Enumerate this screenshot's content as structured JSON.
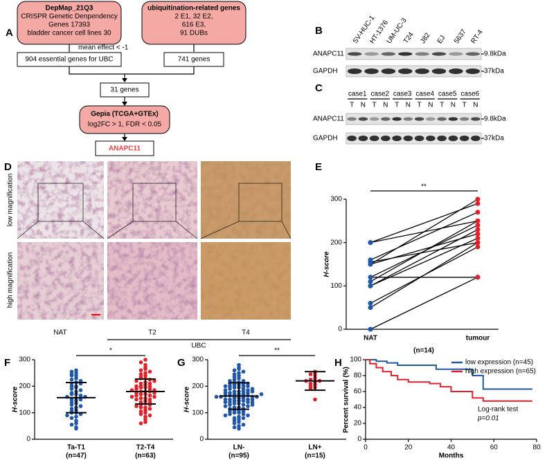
{
  "panel_labels": [
    "A",
    "B",
    "C",
    "D",
    "E",
    "F",
    "G",
    "H"
  ],
  "flowchart": {
    "nodes": [
      {
        "title": "DepMap_21Q3",
        "lines": [
          "CRISPR Genetic Denpendency",
          "Genes 17393",
          "bladder cancer cell lines 30"
        ]
      },
      {
        "title": "ubiquitination-related genes",
        "lines": [
          "2 E1, 32 E2,",
          "616 E3,",
          "91 DUBs"
        ]
      },
      {
        "title": "904 essential genes for UBC"
      },
      {
        "title": "741 genes"
      },
      {
        "title": "31 genes"
      },
      {
        "title": "Gepia (TCGA+GTEx)",
        "lines": [
          "log2FC > 1, FDR < 0.05"
        ]
      },
      {
        "title": "ANAPC11"
      }
    ],
    "edge_label": "mean effect < -1"
  },
  "blot_b": {
    "lanes": [
      "SV-HUC-1",
      "HT-1376",
      "UM-UC-3",
      "T24",
      "J82",
      "EJ",
      "5637",
      "RT-4"
    ],
    "rows": [
      "ANAPC11",
      "GAPDH"
    ],
    "sizes": [
      "9.8kDa",
      "37kDa"
    ]
  },
  "blot_c": {
    "cases": [
      "case1",
      "case2",
      "case3",
      "case4",
      "case5",
      "case6"
    ],
    "tn": [
      "T",
      "N"
    ],
    "rows": [
      "ANAPC11",
      "GAPDH"
    ],
    "sizes": [
      "9.8kDa",
      "37kDa"
    ]
  },
  "histology": {
    "row_labels": [
      "low magnification",
      "high magnification"
    ],
    "columns": [
      "NAT",
      "T2",
      "T4"
    ],
    "group": "UBC"
  },
  "chart_data": [
    {
      "type": "paired",
      "categories": [
        "NAT",
        "tumour"
      ],
      "point_colors": [
        "#1f56a8",
        "#e0202a"
      ],
      "ylabel": "H-score",
      "xlabel": "(n=14)",
      "significance": "**",
      "ylim": [
        0,
        300
      ],
      "yticks": [
        0,
        100,
        200,
        300
      ],
      "series": [
        {
          "values": [
            0,
            120
          ]
        },
        {
          "values": [
            50,
            200
          ]
        },
        {
          "values": [
            60,
            190
          ]
        },
        {
          "values": [
            100,
            210
          ]
        },
        {
          "values": [
            100,
            230
          ]
        },
        {
          "values": [
            110,
            250
          ]
        },
        {
          "values": [
            120,
            120
          ]
        },
        {
          "values": [
            120,
            240
          ]
        },
        {
          "values": [
            150,
            220
          ]
        },
        {
          "values": [
            150,
            300
          ]
        },
        {
          "values": [
            155,
            200
          ]
        },
        {
          "values": [
            160,
            270
          ]
        },
        {
          "values": [
            200,
            250
          ]
        },
        {
          "values": [
            200,
            290
          ]
        }
      ]
    },
    {
      "type": "dot",
      "ylabel": "H-score",
      "significance": "*",
      "ylim": [
        0,
        300
      ],
      "yticks": [
        0,
        100,
        200,
        300
      ],
      "categories": [
        "Ta-T1",
        "T2-T4"
      ],
      "category_counts": [
        "(n=47)",
        "(n=63)"
      ],
      "groups": [
        {
          "color": "#1f56a8",
          "mean": 157,
          "sd": 57,
          "values": [
            260,
            255,
            250,
            245,
            240,
            240,
            230,
            225,
            220,
            215,
            210,
            210,
            200,
            200,
            195,
            190,
            185,
            180,
            175,
            170,
            170,
            165,
            160,
            160,
            155,
            150,
            150,
            145,
            140,
            135,
            130,
            125,
            120,
            115,
            110,
            105,
            100,
            100,
            95,
            90,
            85,
            80,
            70,
            60,
            55,
            45,
            40
          ]
        },
        {
          "color": "#e0202a",
          "mean": 180,
          "sd": 47,
          "values": [
            300,
            290,
            280,
            270,
            265,
            260,
            255,
            250,
            245,
            240,
            235,
            230,
            230,
            225,
            220,
            220,
            215,
            210,
            210,
            205,
            200,
            200,
            200,
            195,
            195,
            190,
            190,
            185,
            185,
            180,
            180,
            180,
            175,
            175,
            170,
            170,
            165,
            165,
            160,
            160,
            155,
            155,
            150,
            150,
            145,
            140,
            140,
            135,
            130,
            130,
            125,
            120,
            120,
            115,
            110,
            105,
            100,
            95,
            90,
            85,
            75,
            65,
            60
          ]
        }
      ]
    },
    {
      "type": "dot",
      "ylabel": "H-score",
      "significance": "**",
      "ylim": [
        0,
        300
      ],
      "yticks": [
        0,
        100,
        200,
        300
      ],
      "categories": [
        "LN-",
        "LN+"
      ],
      "category_counts": [
        "(n=95)",
        "(n=15)"
      ],
      "groups": [
        {
          "color": "#1f56a8",
          "mean": 163,
          "sd": 50,
          "values": [
            280,
            270,
            265,
            260,
            255,
            250,
            245,
            240,
            235,
            230,
            225,
            220,
            220,
            215,
            215,
            210,
            210,
            205,
            205,
            200,
            200,
            200,
            195,
            195,
            190,
            190,
            185,
            185,
            180,
            180,
            180,
            175,
            175,
            175,
            170,
            170,
            170,
            165,
            165,
            165,
            160,
            160,
            160,
            155,
            155,
            155,
            150,
            150,
            150,
            145,
            145,
            145,
            140,
            140,
            140,
            135,
            135,
            130,
            130,
            125,
            125,
            120,
            120,
            115,
            115,
            110,
            110,
            105,
            105,
            100,
            100,
            95,
            95,
            90,
            90,
            85,
            80,
            80,
            75,
            70,
            65,
            60,
            55,
            50,
            45,
            40,
            180,
            190,
            160,
            140,
            170,
            150,
            130,
            200,
            210
          ]
        },
        {
          "color": "#e0202a",
          "mean": 220,
          "sd": 35,
          "values": [
            255,
            250,
            245,
            240,
            230,
            225,
            220,
            220,
            215,
            210,
            205,
            200,
            195,
            190,
            150
          ]
        }
      ]
    },
    {
      "type": "km",
      "xlabel": "Months",
      "ylabel": "Percent survival (%)",
      "xlim": [
        0,
        80
      ],
      "xticks": [
        0,
        20,
        40,
        60,
        80
      ],
      "ylim": [
        0,
        100
      ],
      "yticks": [
        0,
        20,
        40,
        60,
        80,
        100
      ],
      "legend": "upper right",
      "annotations": [
        "Log-rank test",
        "p=0.01"
      ],
      "series": [
        {
          "name": "low expression (n=45)",
          "color": "#1f56a8",
          "x": [
            0,
            5,
            10,
            15,
            33,
            50,
            55,
            78
          ],
          "values": [
            100,
            98,
            96,
            93,
            88,
            80,
            63,
            63
          ]
        },
        {
          "name": "high expression (n=65)",
          "color": "#e0202a",
          "x": [
            0,
            2,
            5,
            8,
            12,
            15,
            20,
            30,
            35,
            40,
            50,
            55,
            78
          ],
          "values": [
            100,
            95,
            90,
            85,
            80,
            75,
            72,
            70,
            66,
            60,
            52,
            48,
            48
          ]
        }
      ]
    }
  ]
}
